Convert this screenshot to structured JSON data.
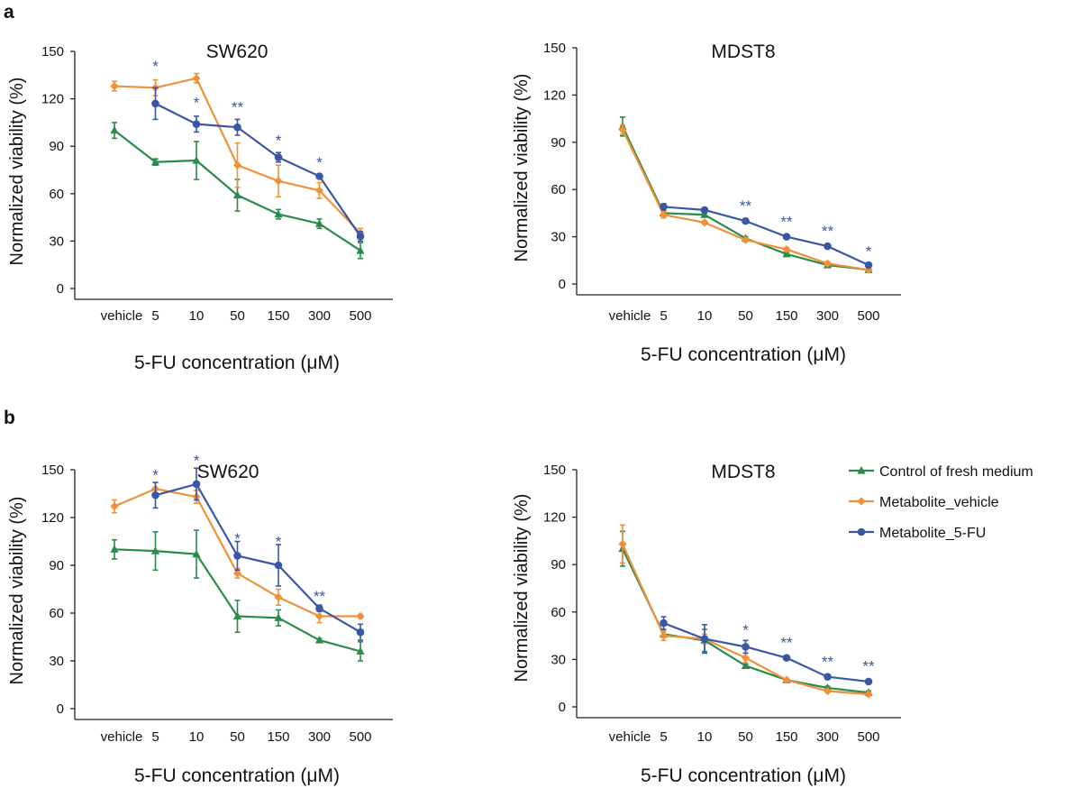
{
  "panels": [
    {
      "label": "a"
    },
    {
      "label": "b"
    }
  ],
  "colors": {
    "Control of fresh medium": "#2a8c4a",
    "Metabolite_vehicle": "#f0913a",
    "Metabolite_5-FU": "#3a57a6"
  },
  "legend": {
    "placement": "right of panel b MDST8",
    "items": [
      "Control of fresh medium",
      "Metabolite_vehicle",
      "Metabolite_5-FU"
    ]
  },
  "chart_data": [
    {
      "type": "line",
      "panel": "a",
      "title": "SW620",
      "xlabel": "5-FU concentration (μM)",
      "ylabel": "Normalized viability (%)",
      "categories": [
        "vehicle",
        "5",
        "10",
        "50",
        "150",
        "300",
        "500"
      ],
      "ylim": [
        0,
        150
      ],
      "yticks": [
        0,
        30,
        60,
        90,
        120,
        150
      ],
      "series": [
        {
          "name": "Control of fresh medium",
          "marker": "triangle",
          "values": [
            100,
            80,
            81,
            59,
            47,
            41,
            24
          ],
          "errors": [
            5,
            2,
            12,
            10,
            3,
            3,
            5
          ]
        },
        {
          "name": "Metabolite_vehicle",
          "marker": "diamond",
          "values": [
            128,
            127,
            133,
            78,
            68,
            62,
            35
          ],
          "errors": [
            3,
            5,
            3,
            14,
            10,
            5,
            3
          ]
        },
        {
          "name": "Metabolite_5-FU",
          "marker": "circle",
          "values": [
            null,
            117,
            104,
            102,
            83,
            71,
            33
          ],
          "errors": [
            null,
            10,
            5,
            5,
            3,
            1,
            3
          ]
        }
      ],
      "significance": [
        {
          "x": "5",
          "label": "*",
          "y": 142
        },
        {
          "x": "10",
          "label": "*",
          "y": 119
        },
        {
          "x": "50",
          "label": "**",
          "y": 116
        },
        {
          "x": "150",
          "label": "*",
          "y": 95
        },
        {
          "x": "300",
          "label": "*",
          "y": 81
        }
      ]
    },
    {
      "type": "line",
      "panel": "a",
      "title": "MDST8",
      "xlabel": "5-FU concentration (μM)",
      "ylabel": "Normalized viability (%)",
      "categories": [
        "vehicle",
        "5",
        "10",
        "50",
        "150",
        "300",
        "500"
      ],
      "ylim": [
        0,
        150
      ],
      "yticks": [
        0,
        30,
        60,
        90,
        120,
        150
      ],
      "series": [
        {
          "name": "Control of fresh medium",
          "marker": "triangle",
          "values": [
            100,
            45,
            44,
            29,
            19,
            12,
            9
          ],
          "errors": [
            6,
            2,
            1,
            1,
            1,
            1,
            1
          ]
        },
        {
          "name": "Metabolite_vehicle",
          "marker": "diamond",
          "values": [
            98,
            44,
            39,
            28,
            22,
            13,
            9
          ],
          "errors": [
            3,
            2,
            1,
            1,
            1,
            1,
            1
          ]
        },
        {
          "name": "Metabolite_5-FU",
          "marker": "circle",
          "values": [
            null,
            49,
            47,
            40,
            30,
            24,
            12
          ],
          "errors": [
            null,
            2,
            1,
            1,
            1,
            1,
            1
          ]
        }
      ],
      "significance": [
        {
          "x": "50",
          "label": "**",
          "y": 51
        },
        {
          "x": "150",
          "label": "**",
          "y": 41
        },
        {
          "x": "300",
          "label": "**",
          "y": 35
        },
        {
          "x": "500",
          "label": "*",
          "y": 22
        }
      ]
    },
    {
      "type": "line",
      "panel": "b",
      "title": "SW620",
      "xlabel": "5-FU concentration (μM)",
      "ylabel": "Normalized viability (%)",
      "categories": [
        "vehicle",
        "5",
        "10",
        "50",
        "150",
        "300",
        "500"
      ],
      "ylim": [
        0,
        150
      ],
      "yticks": [
        0,
        30,
        60,
        90,
        120,
        150
      ],
      "series": [
        {
          "name": "Control of fresh medium",
          "marker": "triangle",
          "values": [
            100,
            99,
            97,
            58,
            57,
            43,
            36
          ],
          "errors": [
            6,
            12,
            15,
            10,
            5,
            1,
            6
          ]
        },
        {
          "name": "Metabolite_vehicle",
          "marker": "diamond",
          "values": [
            127,
            138,
            133,
            85,
            70,
            58,
            58
          ],
          "errors": [
            4,
            4,
            4,
            3,
            5,
            4,
            1
          ]
        },
        {
          "name": "Metabolite_5-FU",
          "marker": "circle",
          "values": [
            null,
            134,
            141,
            96,
            90,
            63,
            48
          ],
          "errors": [
            null,
            8,
            10,
            9,
            13,
            2,
            5
          ]
        }
      ],
      "significance": [
        {
          "x": "5",
          "label": "*",
          "y": 148
        },
        {
          "x": "10",
          "label": "*",
          "y": 157
        },
        {
          "x": "50",
          "label": "*",
          "y": 108
        },
        {
          "x": "150",
          "label": "*",
          "y": 106
        },
        {
          "x": "300",
          "label": "**",
          "y": 72
        }
      ]
    },
    {
      "type": "line",
      "panel": "b",
      "title": "MDST8",
      "xlabel": "5-FU concentration (μM)",
      "ylabel": "Normalized viability (%)",
      "categories": [
        "vehicle",
        "5",
        "10",
        "50",
        "150",
        "300",
        "500"
      ],
      "ylim": [
        0,
        150
      ],
      "yticks": [
        0,
        30,
        60,
        90,
        120,
        150
      ],
      "series": [
        {
          "name": "Control of fresh medium",
          "marker": "triangle",
          "values": [
            100,
            46,
            42,
            26,
            17,
            12,
            9
          ],
          "errors": [
            11,
            2,
            7,
            1,
            1,
            1,
            1
          ]
        },
        {
          "name": "Metabolite_vehicle",
          "marker": "diamond",
          "values": [
            103,
            45,
            43,
            31,
            17,
            10,
            8
          ],
          "errors": [
            12,
            3,
            3,
            3,
            1,
            1,
            1
          ]
        },
        {
          "name": "Metabolite_5-FU",
          "marker": "circle",
          "values": [
            null,
            53,
            43,
            38,
            31,
            19,
            16
          ],
          "errors": [
            null,
            4,
            9,
            4,
            1,
            1,
            1
          ]
        }
      ],
      "significance": [
        {
          "x": "50",
          "label": "*",
          "y": 50
        },
        {
          "x": "150",
          "label": "**",
          "y": 42
        },
        {
          "x": "300",
          "label": "**",
          "y": 30
        },
        {
          "x": "500",
          "label": "**",
          "y": 27
        }
      ]
    }
  ]
}
